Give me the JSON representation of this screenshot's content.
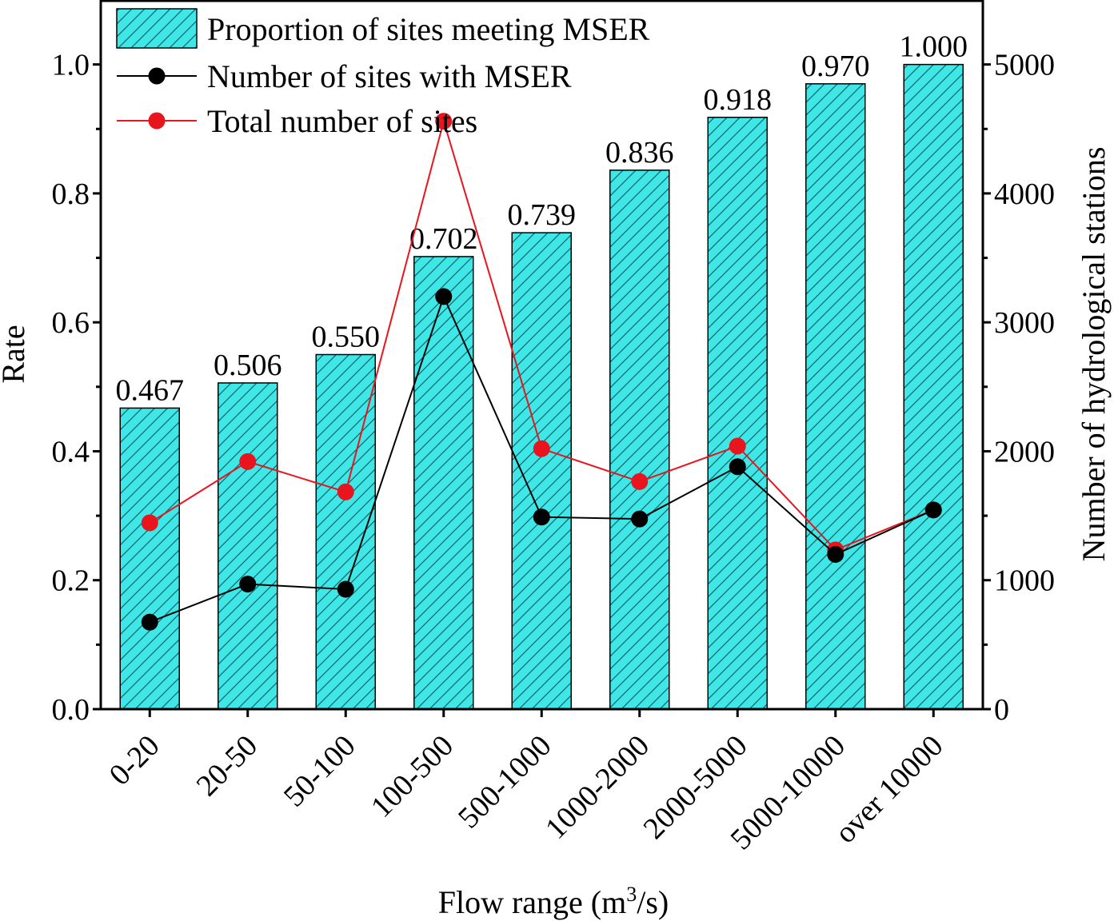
{
  "chart_data": {
    "type": "bar",
    "title": "",
    "xlabel": "Flow range (m",
    "xlabel_sup": "3",
    "xlabel_tail": "/s)",
    "ylabel": "Rate",
    "y2label": "Number of hydrological stations",
    "ylim": [
      0,
      1.1
    ],
    "y2lim": [
      0,
      5500
    ],
    "yticks": [
      "0.0",
      "0.2",
      "0.4",
      "0.6",
      "0.8",
      "1.0"
    ],
    "y2ticks": [
      "0",
      "1000",
      "2000",
      "3000",
      "4000",
      "5000"
    ],
    "categories": [
      "0-20",
      "20-50",
      "50-100",
      "100-500",
      "500-1000",
      "1000-2000",
      "2000-5000",
      "5000-10000",
      "over 10000"
    ],
    "series": [
      {
        "name": "Proportion of sites meeting MSER",
        "kind": "bar",
        "axis": "left",
        "color": "#3fe8e8",
        "values": [
          0.467,
          0.506,
          0.55,
          0.702,
          0.739,
          0.836,
          0.918,
          0.97,
          1.0
        ],
        "labels": [
          "0.467",
          "0.506",
          "0.550",
          "0.702",
          "0.739",
          "0.836",
          "0.918",
          "0.970",
          "1.000"
        ]
      },
      {
        "name": "Number of sites with MSER",
        "kind": "line",
        "axis": "right",
        "color": "#000000",
        "values": [
          675,
          970,
          930,
          3200,
          1490,
          1475,
          1880,
          1200,
          1545
        ]
      },
      {
        "name": "Total number of sites",
        "kind": "line",
        "axis": "right",
        "color": "#e8141e",
        "values": [
          1445,
          1920,
          1685,
          4560,
          2020,
          1765,
          2040,
          1235,
          1545
        ]
      }
    ],
    "legend_position": "top-left"
  }
}
